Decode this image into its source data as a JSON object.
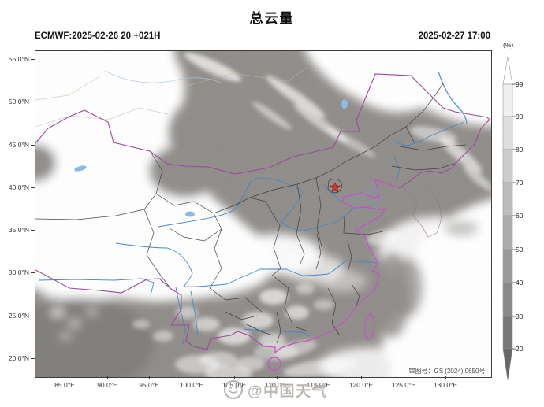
{
  "title": "总云量",
  "header": {
    "model_run": "ECMWF:2025-02-26 20 +021H",
    "valid_time": "2025-02-27 17:00"
  },
  "map": {
    "lat_ticks": [
      "55.0°N",
      "50.0°N",
      "45.0°N",
      "40.0°N",
      "35.0°N",
      "30.0°N",
      "25.0°N",
      "20.0°N"
    ],
    "lon_ticks": [
      "85.0°E",
      "90.0°E",
      "95.0°E",
      "100.0°E",
      "105.0°E",
      "110.0°E",
      "115.0°E",
      "120.0°E",
      "125.0°E",
      "130.0°E"
    ],
    "license_label": "审图号：GS (2024) 0650号",
    "marker": "beijing-red-star"
  },
  "colorbar": {
    "unit": "(%)",
    "ticks": [
      99,
      90,
      80,
      70,
      60,
      50,
      40,
      30,
      20
    ],
    "segment_colors": [
      "#ffffff",
      "#f1efed",
      "#e0dedc",
      "#cfcdcb",
      "#bebcba",
      "#adabab",
      "#9c9a98",
      "#8b8987",
      "#7a7876",
      "#696765"
    ]
  },
  "watermark": {
    "text": "@中国天气"
  },
  "colors": {
    "base_gray": "#908d8a",
    "cloud_white": "#ffffff",
    "national_border": "#9b4a9b",
    "coastline": "#c94fc9",
    "river": "#4487c7",
    "star_red": "#e03226",
    "frame": "#3c3c3c",
    "watermark": "#aca8a3"
  }
}
